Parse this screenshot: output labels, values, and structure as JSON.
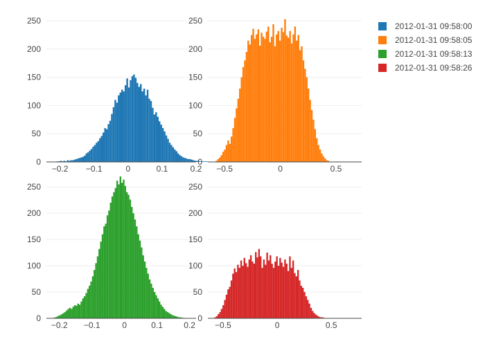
{
  "chart_data": {
    "type": "bar",
    "layout": "2x2 subplot grid of histograms",
    "legend": {
      "placement": "top-right",
      "show": true
    },
    "grid": true,
    "series": [
      {
        "name": "2012-01-31 09:58:00",
        "color": "#1f77b4",
        "x_range": [
          -0.24,
          0.2
        ],
        "y_range": [
          0,
          260
        ],
        "x_ticks": [
          {
            "value": -0.2,
            "label": "−0.2"
          },
          {
            "value": -0.1,
            "label": "−0.1"
          },
          {
            "value": 0,
            "label": "0"
          },
          {
            "value": 0.1,
            "label": "0.1"
          },
          {
            "value": 0.2,
            "label": "0.2"
          }
        ],
        "y_ticks": [
          {
            "value": 0,
            "label": "0"
          },
          {
            "value": 50,
            "label": "50"
          },
          {
            "value": 100,
            "label": "100"
          },
          {
            "value": 150,
            "label": "150"
          },
          {
            "value": 200,
            "label": "200"
          },
          {
            "value": 250,
            "label": "250"
          }
        ],
        "bin_start": -0.21,
        "bin_width": 0.005,
        "values": [
          1,
          1,
          2,
          1,
          2,
          1,
          3,
          2,
          3,
          3,
          4,
          5,
          6,
          7,
          8,
          9,
          11,
          15,
          17,
          20,
          23,
          27,
          30,
          34,
          37,
          42,
          46,
          52,
          60,
          58,
          67,
          73,
          85,
          97,
          110,
          105,
          118,
          123,
          128,
          125,
          136,
          148,
          132,
          145,
          152,
          155,
          149,
          140,
          133,
          138,
          125,
          130,
          118,
          128,
          112,
          108,
          96,
          84,
          88,
          80,
          72,
          66,
          60,
          54,
          47,
          41,
          34,
          30,
          26,
          22,
          19,
          15,
          12,
          10,
          8,
          7,
          6,
          5,
          5,
          4,
          3,
          2,
          2,
          2,
          1,
          1,
          1,
          1,
          1
        ],
        "peak_label": "≈152 near 0"
      },
      {
        "name": "2012-01-31 09:58:05",
        "color": "#ff7f0e",
        "x_range": [
          -0.65,
          0.73
        ],
        "y_range": [
          0,
          260
        ],
        "x_ticks": [
          {
            "value": -0.5,
            "label": "−0.5"
          },
          {
            "value": 0,
            "label": "0"
          },
          {
            "value": 0.5,
            "label": "0.5"
          }
        ],
        "y_ticks": [
          {
            "value": 0,
            "label": "0"
          },
          {
            "value": 50,
            "label": "50"
          },
          {
            "value": 100,
            "label": "100"
          },
          {
            "value": 150,
            "label": "150"
          },
          {
            "value": 200,
            "label": "200"
          },
          {
            "value": 250,
            "label": "250"
          }
        ],
        "bin_start": -0.58,
        "bin_width": 0.015,
        "values": [
          2,
          5,
          8,
          12,
          18,
          22,
          30,
          38,
          32,
          45,
          60,
          78,
          95,
          112,
          130,
          150,
          168,
          180,
          195,
          215,
          208,
          225,
          236,
          218,
          226,
          235,
          206,
          229,
          222,
          218,
          231,
          240,
          212,
          222,
          244,
          205,
          226,
          232,
          215,
          238,
          230,
          253,
          224,
          220,
          232,
          210,
          226,
          240,
          215,
          225,
          198,
          205,
          180,
          165,
          150,
          130,
          110,
          92,
          75,
          58,
          42,
          30,
          22,
          15,
          10,
          6,
          3,
          2
        ],
        "peak_label": "≈253"
      },
      {
        "name": "2012-01-31 09:58:13",
        "color": "#2ca02c",
        "x_range": [
          -0.24,
          0.22
        ],
        "y_range": [
          0,
          270
        ],
        "x_ticks": [
          {
            "value": -0.2,
            "label": "−0.2"
          },
          {
            "value": -0.1,
            "label": "−0.1"
          },
          {
            "value": 0,
            "label": "0"
          },
          {
            "value": 0.1,
            "label": "0.1"
          },
          {
            "value": 0.2,
            "label": "0.2"
          }
        ],
        "y_ticks": [
          {
            "value": 0,
            "label": "0"
          },
          {
            "value": 50,
            "label": "50"
          },
          {
            "value": 100,
            "label": "100"
          },
          {
            "value": 150,
            "label": "150"
          },
          {
            "value": 200,
            "label": "200"
          },
          {
            "value": 250,
            "label": "250"
          }
        ],
        "bin_start": -0.22,
        "bin_width": 0.005,
        "values": [
          1,
          2,
          3,
          5,
          6,
          8,
          10,
          12,
          15,
          18,
          20,
          18,
          22,
          25,
          24,
          28,
          26,
          32,
          38,
          42,
          48,
          56,
          62,
          70,
          80,
          92,
          105,
          118,
          132,
          146,
          160,
          175,
          180,
          196,
          205,
          220,
          232,
          240,
          248,
          262,
          255,
          270,
          258,
          264,
          252,
          240,
          235,
          226,
          212,
          200,
          188,
          175,
          160,
          148,
          135,
          120,
          108,
          96,
          85,
          74,
          66,
          58,
          50,
          44,
          38,
          32,
          26,
          22,
          18,
          14,
          12,
          10,
          8,
          6,
          5,
          4,
          3,
          2,
          2,
          1,
          1
        ],
        "peak_label": "≈272"
      },
      {
        "name": "2012-01-31 09:58:26",
        "color": "#d62728",
        "x_range": [
          -0.64,
          0.78
        ],
        "y_range": [
          0,
          270
        ],
        "x_ticks": [
          {
            "value": -0.5,
            "label": "−0.5"
          },
          {
            "value": 0,
            "label": "0"
          },
          {
            "value": 0.5,
            "label": "0.5"
          }
        ],
        "y_ticks": [
          {
            "value": 0,
            "label": "0"
          },
          {
            "value": 50,
            "label": "50"
          },
          {
            "value": 100,
            "label": "100"
          },
          {
            "value": 150,
            "label": "150"
          },
          {
            "value": 200,
            "label": "200"
          },
          {
            "value": 250,
            "label": "250"
          }
        ],
        "bin_start": -0.58,
        "bin_width": 0.015,
        "values": [
          2,
          4,
          8,
          12,
          18,
          25,
          35,
          45,
          55,
          60,
          72,
          85,
          95,
          88,
          102,
          96,
          110,
          100,
          115,
          105,
          98,
          112,
          120,
          108,
          104,
          126,
          116,
          132,
          118,
          96,
          112,
          102,
          125,
          110,
          120,
          104,
          96,
          108,
          118,
          100,
          115,
          106,
          98,
          112,
          104,
          90,
          118,
          96,
          110,
          86,
          80,
          92,
          72,
          62,
          58,
          50,
          42,
          35,
          28,
          20,
          14,
          10,
          7,
          5,
          3,
          2,
          2,
          1
        ],
        "peak_label": "≈133"
      }
    ]
  }
}
